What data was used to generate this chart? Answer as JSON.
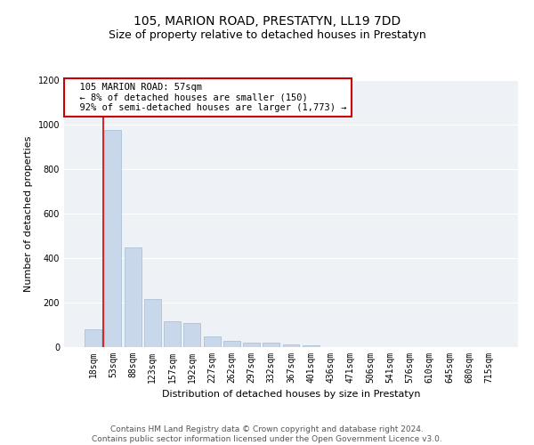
{
  "title": "105, MARION ROAD, PRESTATYN, LL19 7DD",
  "subtitle": "Size of property relative to detached houses in Prestatyn",
  "xlabel": "Distribution of detached houses by size in Prestatyn",
  "ylabel": "Number of detached properties",
  "bar_color": "#c8d8ea",
  "bar_edge_color": "#a0bdd0",
  "background_color": "#eef2f7",
  "grid_color": "#ffffff",
  "categories": [
    "18sqm",
    "53sqm",
    "88sqm",
    "123sqm",
    "157sqm",
    "192sqm",
    "227sqm",
    "262sqm",
    "297sqm",
    "332sqm",
    "367sqm",
    "401sqm",
    "436sqm",
    "471sqm",
    "506sqm",
    "541sqm",
    "576sqm",
    "610sqm",
    "645sqm",
    "680sqm",
    "715sqm"
  ],
  "values": [
    80,
    975,
    450,
    215,
    115,
    110,
    50,
    28,
    22,
    20,
    14,
    10,
    0,
    0,
    0,
    0,
    0,
    0,
    0,
    0,
    0
  ],
  "ylim": [
    0,
    1200
  ],
  "yticks": [
    0,
    200,
    400,
    600,
    800,
    1000,
    1200
  ],
  "property_line_x": 0.5,
  "annotation_text": "  105 MARION ROAD: 57sqm\n  ← 8% of detached houses are smaller (150)\n  92% of semi-detached houses are larger (1,773) →",
  "annotation_box_color": "#ffffff",
  "annotation_box_edge_color": "#cc0000",
  "property_line_color": "#cc0000",
  "footer_text": "Contains HM Land Registry data © Crown copyright and database right 2024.\nContains public sector information licensed under the Open Government Licence v3.0.",
  "title_fontsize": 10,
  "subtitle_fontsize": 9,
  "axis_label_fontsize": 8,
  "tick_fontsize": 7,
  "annotation_fontsize": 7.5,
  "footer_fontsize": 6.5
}
